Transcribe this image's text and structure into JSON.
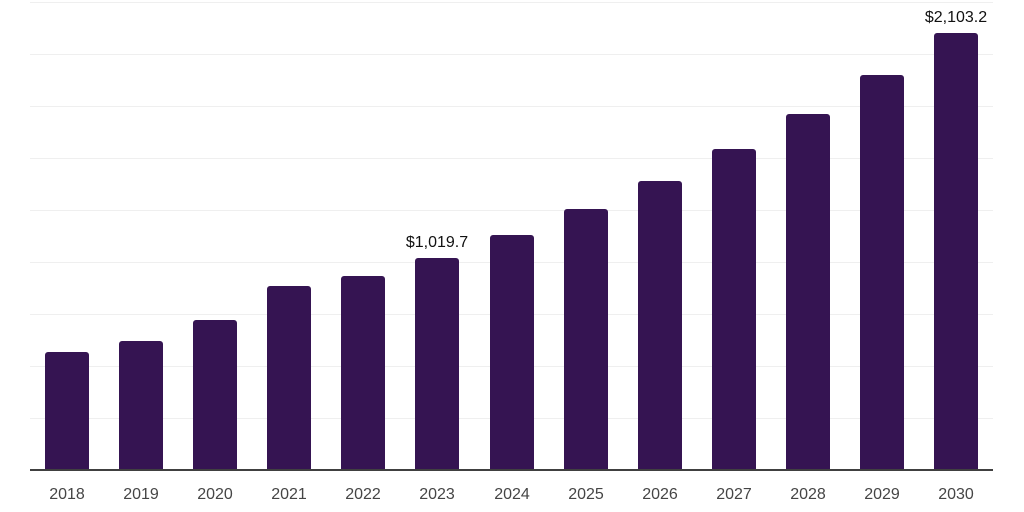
{
  "chart_data": {
    "type": "bar",
    "title": "",
    "xlabel": "",
    "ylabel": "",
    "categories": [
      "2018",
      "2019",
      "2020",
      "2021",
      "2022",
      "2023",
      "2024",
      "2025",
      "2026",
      "2027",
      "2028",
      "2029",
      "2030"
    ],
    "values": [
      565,
      620,
      722,
      883,
      931,
      1019.7,
      1131,
      1254,
      1391,
      1543,
      1711,
      1897,
      2103.2
    ],
    "annotations": [
      {
        "category": "2023",
        "label": "$1,019.7"
      },
      {
        "category": "2030",
        "label": "$2,103.2"
      }
    ],
    "ylim": [
      0,
      2250
    ],
    "gridline_step": 250,
    "grid": "horizontal",
    "legend_position": "none",
    "y_axis_tick_labels_visible": false
  },
  "colors": {
    "background": "#ffffff",
    "bar": "#351452",
    "gridline": "#efefef",
    "axis_line": "#404040",
    "tick_label": "#454545",
    "data_label": "#111111"
  }
}
